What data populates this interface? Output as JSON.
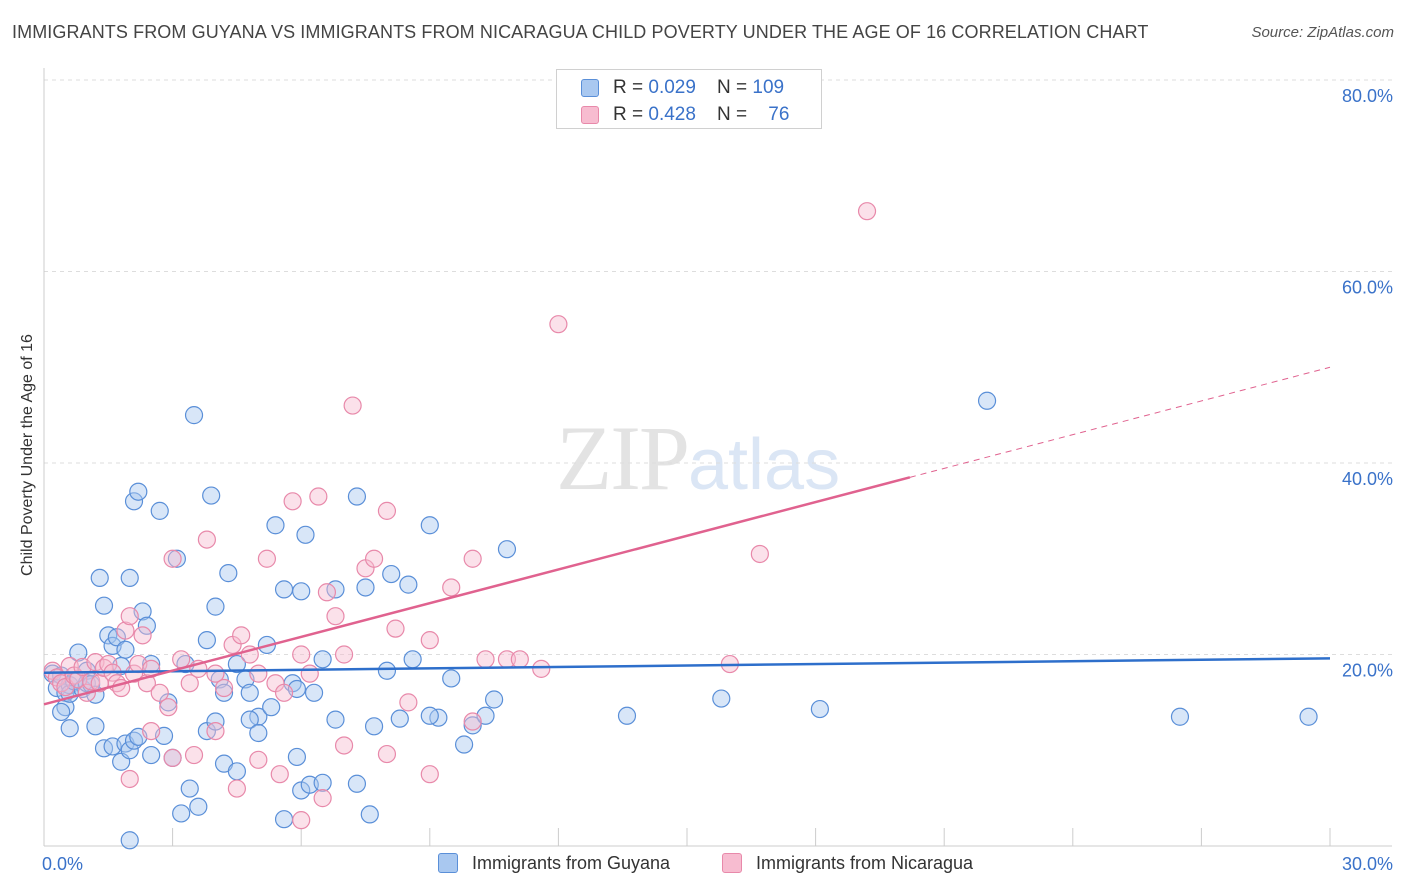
{
  "header": {
    "title": "IMMIGRANTS FROM GUYANA VS IMMIGRANTS FROM NICARAGUA CHILD POVERTY UNDER THE AGE OF 16 CORRELATION CHART",
    "source": "Source: ZipAtlas.com"
  },
  "watermark": {
    "zip": "ZIP",
    "atlas": "atlas"
  },
  "colors": {
    "guyana_fill": "#a9c8f0",
    "guyana_stroke": "#5a8fd8",
    "guyana_line": "#2e6fcb",
    "nicaragua_fill": "#f7bcd0",
    "nicaragua_stroke": "#e889aa",
    "nicaragua_line": "#e0628f",
    "axis_label": "#3a72c9",
    "grid": "#dddddd"
  },
  "legend_top": {
    "rows": [
      {
        "r_label": "R = ",
        "r_value": "0.029",
        "n_label": "N = ",
        "n_value": "109"
      },
      {
        "r_label": "R = ",
        "r_value": "0.428",
        "n_label": "N = ",
        "n_value": "76"
      }
    ]
  },
  "legend_bottom": {
    "items": [
      {
        "label": "Immigrants from Guyana"
      },
      {
        "label": "Immigrants from Nicaragua"
      }
    ]
  },
  "chart_data": {
    "type": "scatter",
    "title": "IMMIGRANTS FROM GUYANA VS IMMIGRANTS FROM NICARAGUA CHILD POVERTY UNDER THE AGE OF 16 CORRELATION CHART",
    "xlabel": "",
    "ylabel": "Child Poverty Under the Age of 16",
    "xlim": [
      0,
      30
    ],
    "ylim": [
      0,
      80
    ],
    "x_tick_labels": [
      {
        "value": 0,
        "label": "0.0%"
      },
      {
        "value": 30,
        "label": "30.0%"
      }
    ],
    "y_tick_labels": [
      {
        "value": 20,
        "label": "20.0%"
      },
      {
        "value": 40,
        "label": "40.0%"
      },
      {
        "value": 60,
        "label": "60.0%"
      },
      {
        "value": 80,
        "label": "80.0%"
      }
    ],
    "grid": true,
    "legend_position": "top-center",
    "series": [
      {
        "name": "Immigrants from Guyana",
        "r": 0.029,
        "n": 109,
        "trend": {
          "x": [
            0,
            30
          ],
          "y": [
            18.1,
            19.6
          ],
          "solid_until": 30
        },
        "points": [
          [
            0.2,
            18.0
          ],
          [
            0.3,
            16.5
          ],
          [
            0.4,
            17.8
          ],
          [
            0.5,
            16.0
          ],
          [
            0.5,
            14.5
          ],
          [
            0.6,
            16.8
          ],
          [
            0.6,
            15.9
          ],
          [
            0.7,
            17.2
          ],
          [
            0.8,
            20.2
          ],
          [
            0.9,
            16.4
          ],
          [
            1.0,
            18.3
          ],
          [
            1.0,
            17.0
          ],
          [
            1.1,
            16.9
          ],
          [
            1.2,
            15.8
          ],
          [
            1.3,
            28.0
          ],
          [
            1.4,
            25.1
          ],
          [
            1.5,
            22.0
          ],
          [
            1.6,
            20.9
          ],
          [
            1.7,
            21.8
          ],
          [
            1.8,
            18.8
          ],
          [
            1.9,
            20.5
          ],
          [
            2.0,
            28.0
          ],
          [
            2.1,
            36.0
          ],
          [
            2.2,
            37.0
          ],
          [
            2.3,
            24.5
          ],
          [
            2.4,
            23.0
          ],
          [
            2.5,
            19.0
          ],
          [
            2.7,
            35.0
          ],
          [
            2.9,
            15.0
          ],
          [
            3.1,
            30.0
          ],
          [
            3.3,
            19.0
          ],
          [
            3.5,
            45.0
          ],
          [
            3.8,
            21.5
          ],
          [
            3.9,
            36.6
          ],
          [
            4.0,
            25.0
          ],
          [
            4.1,
            17.4
          ],
          [
            4.2,
            16.0
          ],
          [
            4.3,
            28.5
          ],
          [
            4.5,
            19.0
          ],
          [
            4.7,
            17.4
          ],
          [
            4.8,
            16.0
          ],
          [
            5.0,
            13.5
          ],
          [
            5.2,
            21.0
          ],
          [
            5.4,
            33.5
          ],
          [
            5.6,
            26.8
          ],
          [
            5.8,
            17.0
          ],
          [
            5.9,
            16.4
          ],
          [
            6.0,
            26.6
          ],
          [
            6.1,
            32.5
          ],
          [
            6.3,
            16.0
          ],
          [
            6.5,
            19.5
          ],
          [
            6.8,
            26.8
          ],
          [
            7.3,
            36.5
          ],
          [
            7.5,
            27.0
          ],
          [
            8.0,
            18.3
          ],
          [
            8.1,
            28.4
          ],
          [
            8.3,
            13.3
          ],
          [
            8.5,
            27.3
          ],
          [
            8.6,
            19.5
          ],
          [
            9.0,
            33.5
          ],
          [
            9.2,
            13.4
          ],
          [
            9.5,
            17.5
          ],
          [
            9.8,
            10.6
          ],
          [
            10.0,
            12.6
          ],
          [
            10.3,
            13.6
          ],
          [
            10.5,
            15.3
          ],
          [
            10.8,
            31.0
          ],
          [
            0.4,
            14.0
          ],
          [
            0.6,
            12.3
          ],
          [
            1.2,
            12.5
          ],
          [
            1.4,
            10.2
          ],
          [
            1.6,
            10.4
          ],
          [
            1.8,
            8.8
          ],
          [
            1.9,
            10.7
          ],
          [
            2.0,
            10.0
          ],
          [
            2.1,
            11.0
          ],
          [
            2.2,
            11.4
          ],
          [
            2.5,
            9.5
          ],
          [
            2.8,
            11.5
          ],
          [
            3.0,
            9.2
          ],
          [
            3.4,
            6.0
          ],
          [
            3.2,
            3.4
          ],
          [
            3.6,
            4.1
          ],
          [
            3.8,
            12.0
          ],
          [
            4.0,
            13.0
          ],
          [
            4.2,
            8.6
          ],
          [
            4.5,
            7.8
          ],
          [
            4.8,
            13.2
          ],
          [
            5.0,
            11.8
          ],
          [
            5.3,
            14.5
          ],
          [
            5.6,
            2.8
          ],
          [
            5.9,
            9.3
          ],
          [
            6.0,
            5.8
          ],
          [
            6.2,
            6.4
          ],
          [
            6.5,
            6.6
          ],
          [
            6.8,
            13.2
          ],
          [
            7.3,
            6.5
          ],
          [
            7.6,
            3.3
          ],
          [
            7.7,
            12.5
          ],
          [
            2.0,
            0.6
          ],
          [
            9.0,
            13.6
          ],
          [
            13.6,
            13.6
          ],
          [
            15.8,
            15.4
          ],
          [
            18.1,
            14.3
          ],
          [
            22.0,
            46.5
          ],
          [
            26.5,
            13.5
          ],
          [
            29.5,
            13.5
          ]
        ]
      },
      {
        "name": "Immigrants from Nicaragua",
        "r": 0.428,
        "n": 76,
        "trend": {
          "x": [
            0,
            30
          ],
          "y": [
            14.8,
            50.0
          ],
          "solid_until": 20.2
        },
        "points": [
          [
            0.2,
            18.3
          ],
          [
            0.3,
            17.6
          ],
          [
            0.4,
            17.0
          ],
          [
            0.5,
            16.6
          ],
          [
            0.6,
            18.8
          ],
          [
            0.7,
            17.8
          ],
          [
            0.8,
            17.4
          ],
          [
            0.9,
            18.7
          ],
          [
            1.0,
            16.0
          ],
          [
            1.1,
            17.2
          ],
          [
            1.2,
            19.2
          ],
          [
            1.3,
            17.0
          ],
          [
            1.4,
            18.6
          ],
          [
            1.5,
            19.0
          ],
          [
            1.6,
            18.1
          ],
          [
            1.7,
            17.0
          ],
          [
            1.8,
            16.5
          ],
          [
            1.9,
            22.5
          ],
          [
            2.0,
            24.0
          ],
          [
            2.1,
            18.0
          ],
          [
            2.2,
            19.0
          ],
          [
            2.3,
            22.0
          ],
          [
            2.4,
            17.0
          ],
          [
            2.5,
            18.5
          ],
          [
            2.7,
            16.0
          ],
          [
            2.9,
            14.5
          ],
          [
            3.0,
            30.0
          ],
          [
            3.2,
            19.5
          ],
          [
            3.4,
            17.0
          ],
          [
            3.6,
            18.5
          ],
          [
            3.8,
            32.0
          ],
          [
            4.0,
            18.0
          ],
          [
            4.2,
            16.5
          ],
          [
            4.4,
            21.0
          ],
          [
            4.6,
            22.0
          ],
          [
            4.8,
            20.0
          ],
          [
            5.0,
            18.0
          ],
          [
            5.2,
            30.0
          ],
          [
            5.4,
            17.0
          ],
          [
            5.6,
            16.0
          ],
          [
            5.8,
            36.0
          ],
          [
            6.0,
            20.0
          ],
          [
            6.2,
            18.0
          ],
          [
            6.4,
            36.5
          ],
          [
            6.6,
            26.5
          ],
          [
            6.8,
            24.0
          ],
          [
            7.0,
            20.0
          ],
          [
            7.2,
            46.0
          ],
          [
            7.5,
            29.0
          ],
          [
            7.7,
            30.0
          ],
          [
            8.0,
            35.0
          ],
          [
            8.2,
            22.7
          ],
          [
            8.5,
            15.0
          ],
          [
            9.0,
            21.5
          ],
          [
            9.5,
            27.0
          ],
          [
            10.0,
            30.0
          ],
          [
            10.3,
            19.5
          ],
          [
            10.8,
            19.5
          ],
          [
            11.1,
            19.5
          ],
          [
            11.6,
            18.5
          ],
          [
            12.0,
            54.5
          ],
          [
            16.0,
            19.0
          ],
          [
            16.7,
            30.5
          ],
          [
            19.2,
            66.3
          ],
          [
            2.0,
            7.0
          ],
          [
            2.5,
            12.0
          ],
          [
            3.0,
            9.2
          ],
          [
            3.5,
            9.5
          ],
          [
            4.0,
            12.0
          ],
          [
            4.5,
            6.0
          ],
          [
            5.0,
            9.0
          ],
          [
            5.5,
            7.5
          ],
          [
            6.0,
            2.7
          ],
          [
            6.5,
            5.0
          ],
          [
            7.0,
            10.5
          ],
          [
            8.0,
            9.6
          ],
          [
            9.0,
            7.5
          ],
          [
            10.0,
            13.0
          ]
        ]
      }
    ]
  }
}
